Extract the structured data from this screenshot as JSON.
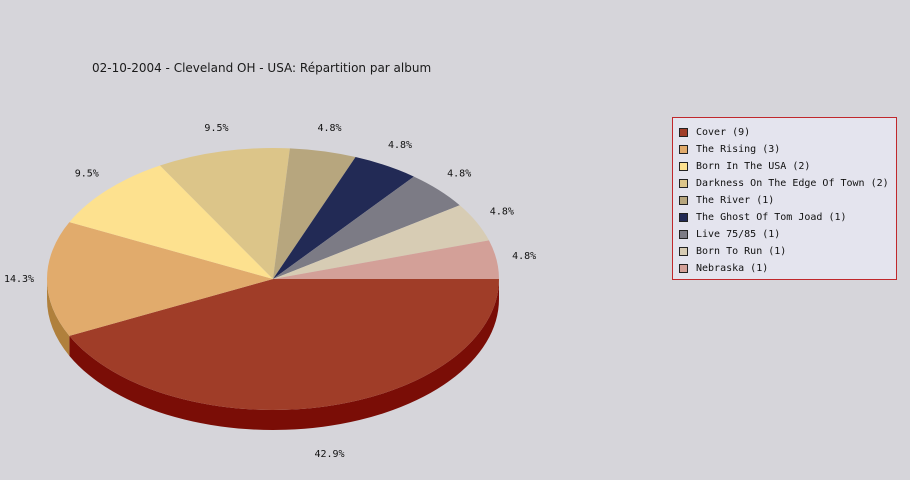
{
  "chart_data": {
    "type": "pie",
    "title": "02-10-2004 - Cleveland OH - USA:  Répartition par album",
    "slices": [
      {
        "label": "Cover (9)",
        "value": 9,
        "pct_label": "42.9%",
        "color": "#a03d28",
        "side_color": "#7a0d06"
      },
      {
        "label": "The Rising (3)",
        "value": 3,
        "pct_label": "14.3%",
        "color": "#e1ab6c",
        "side_color": "#b0803c"
      },
      {
        "label": "Born In The USA (2)",
        "value": 2,
        "pct_label": "9.5%",
        "color": "#fde18f",
        "side_color": "#c9ae5c"
      },
      {
        "label": "Darkness On The Edge Of Town (2)",
        "value": 2,
        "pct_label": "9.5%",
        "color": "#dcc589",
        "side_color": "#a99356"
      },
      {
        "label": "The River (1)",
        "value": 1,
        "pct_label": "4.8%",
        "color": "#b7a67e",
        "side_color": "#85754e"
      },
      {
        "label": "The Ghost Of Tom Joad (1)",
        "value": 1,
        "pct_label": "4.8%",
        "color": "#222a55",
        "side_color": "#10142c"
      },
      {
        "label": "Live 75/85 (1)",
        "value": 1,
        "pct_label": "4.8%",
        "color": "#7c7b85",
        "side_color": "#55545c"
      },
      {
        "label": "Born To Run (1)",
        "value": 1,
        "pct_label": "4.8%",
        "color": "#d7ccb4",
        "side_color": "#a79c84"
      },
      {
        "label": "Nebraska (1)",
        "value": 1,
        "pct_label": "4.8%",
        "color": "#d3a098",
        "side_color": "#a87068"
      }
    ],
    "legend_position": "right"
  }
}
